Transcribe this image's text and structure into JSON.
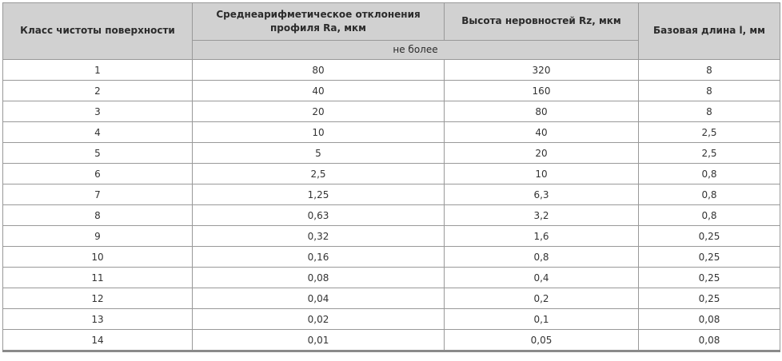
{
  "table": {
    "title_semantic": "surface-cleanliness-class-roughness-table",
    "headers": {
      "class": "Класс чистоты поверхности",
      "ra": "Среднеарифметическое отклонения профиля Ra, мкм",
      "rz": "Высота неровностей Rz, мкм",
      "base_length": "Базовая длина l, мм",
      "sub": "не более"
    },
    "column_keys": [
      "class",
      "ra",
      "rz",
      "base-length"
    ],
    "rows": [
      [
        "1",
        "80",
        "320",
        "8"
      ],
      [
        "2",
        "40",
        "160",
        "8"
      ],
      [
        "3",
        "20",
        "80",
        "8"
      ],
      [
        "4",
        "10",
        "40",
        "2,5"
      ],
      [
        "5",
        "5",
        "20",
        "2,5"
      ],
      [
        "6",
        "2,5",
        "10",
        "0,8"
      ],
      [
        "7",
        "1,25",
        "6,3",
        "0,8"
      ],
      [
        "8",
        "0,63",
        "3,2",
        "0,8"
      ],
      [
        "9",
        "0,32",
        "1,6",
        "0,25"
      ],
      [
        "10",
        "0,16",
        "0,8",
        "0,25"
      ],
      [
        "11",
        "0,08",
        "0,4",
        "0,25"
      ],
      [
        "12",
        "0,04",
        "0,2",
        "0,25"
      ],
      [
        "13",
        "0,02",
        "0,1",
        "0,08"
      ],
      [
        "14",
        "0,01",
        "0,05",
        "0,08"
      ]
    ],
    "colors": {
      "header_bg": "#d1d1d1",
      "grid_border": "#999999",
      "bottom_border": "#8a8a8a",
      "text": "#333333",
      "page_bg": "#ffffff"
    }
  }
}
